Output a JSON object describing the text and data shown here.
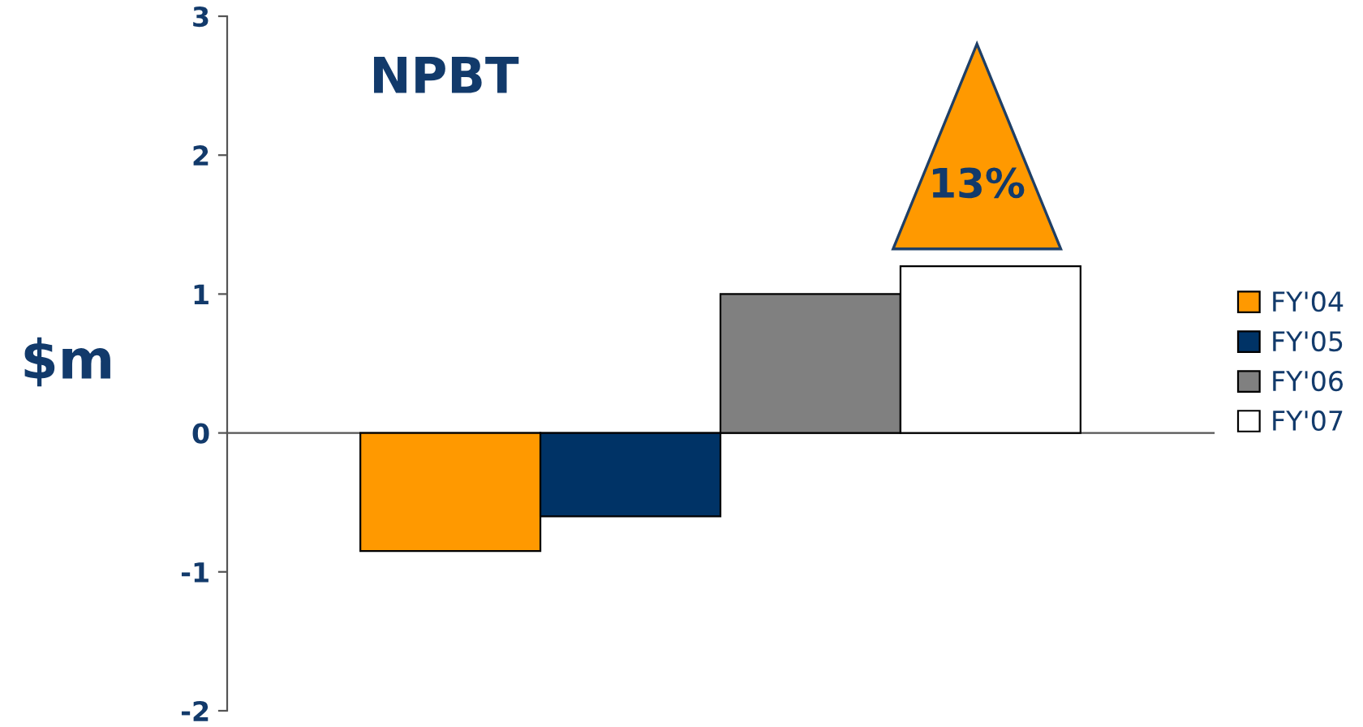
{
  "chart_data": {
    "type": "bar",
    "title": "NPBT",
    "ylabel": "$m",
    "categories": [
      null
    ],
    "series": [
      {
        "name": "FY'04",
        "color": "#ff9900",
        "values": [
          -0.85
        ]
      },
      {
        "name": "FY'05",
        "color": "#003366",
        "values": [
          -0.6
        ]
      },
      {
        "name": "FY'06",
        "color": "#808080",
        "values": [
          1.0
        ]
      },
      {
        "name": "FY'07",
        "color": "#ffffff",
        "values": [
          1.2
        ]
      }
    ],
    "ylim": [
      -2,
      3
    ],
    "yticks": [
      -2,
      -1,
      0,
      1,
      2,
      3
    ],
    "legend": "right",
    "annotations": [
      "13%"
    ]
  }
}
